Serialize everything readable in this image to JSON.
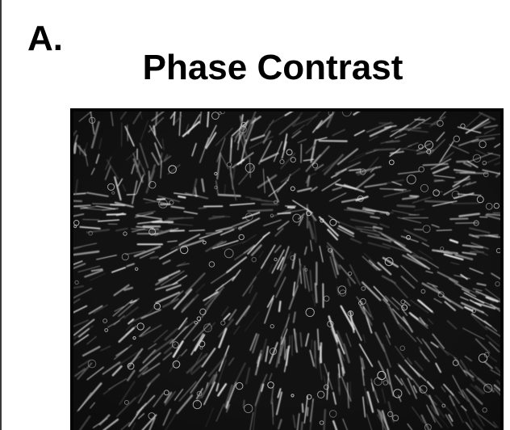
{
  "figure": {
    "panel_label": "A.",
    "title": "Phase Contrast"
  },
  "micrograph": {
    "background_color": "#101010",
    "cell_color": "#e8e8e8",
    "halo_color": "#cfcfcf"
  }
}
